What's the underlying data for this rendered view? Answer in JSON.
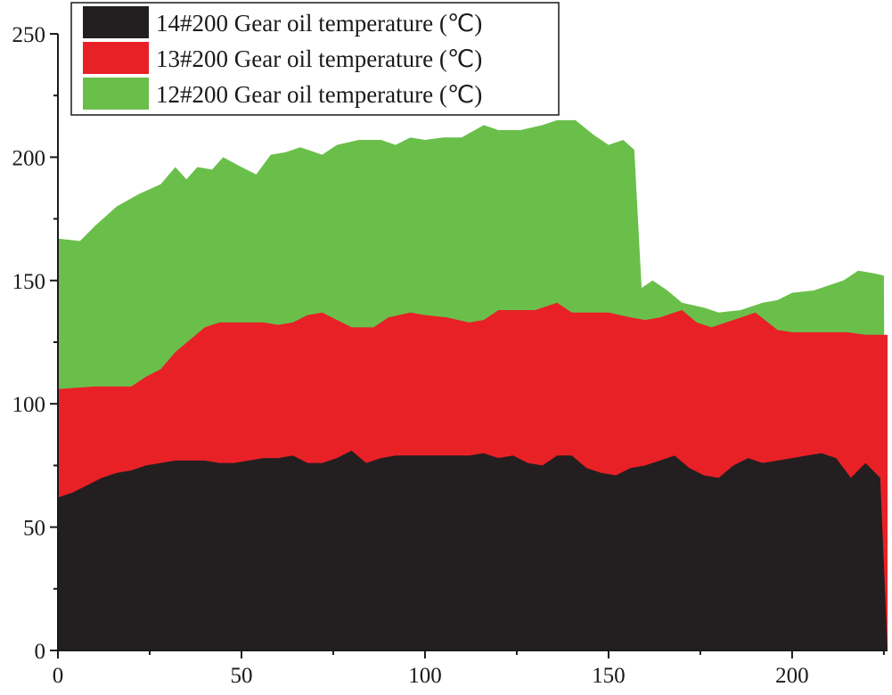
{
  "chart_data": {
    "type": "area",
    "title": "",
    "xlabel": "",
    "ylabel": "",
    "xlim": [
      0,
      226
    ],
    "ylim": [
      0,
      250
    ],
    "x_ticks": [
      0,
      50,
      100,
      150,
      200
    ],
    "y_ticks": [
      0,
      50,
      100,
      150,
      200,
      250
    ],
    "x_tick_labels": [
      "0",
      "50",
      "100",
      "150",
      "200"
    ],
    "y_tick_labels": [
      "0",
      "50",
      "100",
      "150",
      "200",
      "250"
    ],
    "legend_position": "top-left",
    "series": [
      {
        "name": "12#200 Gear oil temperature (℃)",
        "color": "#6abf4b",
        "points": [
          [
            0,
            167
          ],
          [
            6,
            166
          ],
          [
            10,
            172
          ],
          [
            16,
            180
          ],
          [
            22,
            185
          ],
          [
            28,
            189
          ],
          [
            32,
            196
          ],
          [
            35,
            191
          ],
          [
            38,
            196
          ],
          [
            42,
            195
          ],
          [
            45,
            200
          ],
          [
            50,
            196
          ],
          [
            54,
            193
          ],
          [
            58,
            201
          ],
          [
            62,
            202
          ],
          [
            66,
            204
          ],
          [
            72,
            201
          ],
          [
            76,
            205
          ],
          [
            82,
            207
          ],
          [
            88,
            207
          ],
          [
            92,
            205
          ],
          [
            96,
            208
          ],
          [
            100,
            207
          ],
          [
            105,
            208
          ],
          [
            110,
            208
          ],
          [
            116,
            213
          ],
          [
            120,
            211
          ],
          [
            126,
            211
          ],
          [
            132,
            213
          ],
          [
            136,
            215
          ],
          [
            141,
            215
          ],
          [
            146,
            209
          ],
          [
            150,
            205
          ],
          [
            154,
            207
          ],
          [
            157,
            203
          ],
          [
            159,
            147
          ],
          [
            162,
            150
          ],
          [
            166,
            146
          ],
          [
            170,
            141
          ],
          [
            176,
            139
          ],
          [
            180,
            137
          ],
          [
            186,
            138
          ],
          [
            192,
            141
          ],
          [
            196,
            142
          ],
          [
            200,
            145
          ],
          [
            206,
            146
          ],
          [
            210,
            148
          ],
          [
            214,
            150
          ],
          [
            218,
            154
          ],
          [
            222,
            153
          ],
          [
            225,
            152
          ],
          [
            225.5,
            0
          ]
        ]
      },
      {
        "name": "13#200 Gear oil temperature (℃)",
        "color": "#e82127",
        "points": [
          [
            0,
            106
          ],
          [
            10,
            107
          ],
          [
            20,
            107
          ],
          [
            24,
            111
          ],
          [
            28,
            114
          ],
          [
            32,
            121
          ],
          [
            36,
            126
          ],
          [
            40,
            131
          ],
          [
            44,
            133
          ],
          [
            50,
            133
          ],
          [
            56,
            133
          ],
          [
            60,
            132
          ],
          [
            64,
            133
          ],
          [
            68,
            136
          ],
          [
            72,
            137
          ],
          [
            76,
            134
          ],
          [
            80,
            131
          ],
          [
            86,
            131
          ],
          [
            90,
            135
          ],
          [
            96,
            137
          ],
          [
            100,
            136
          ],
          [
            106,
            135
          ],
          [
            112,
            133
          ],
          [
            116,
            134
          ],
          [
            120,
            138
          ],
          [
            126,
            138
          ],
          [
            130,
            138
          ],
          [
            136,
            141
          ],
          [
            140,
            137
          ],
          [
            146,
            137
          ],
          [
            150,
            137
          ],
          [
            156,
            135
          ],
          [
            160,
            134
          ],
          [
            164,
            135
          ],
          [
            170,
            138
          ],
          [
            174,
            133
          ],
          [
            178,
            131
          ],
          [
            184,
            134
          ],
          [
            190,
            137
          ],
          [
            196,
            130
          ],
          [
            200,
            129
          ],
          [
            205,
            129
          ],
          [
            210,
            129
          ],
          [
            215,
            129
          ],
          [
            220,
            128
          ],
          [
            226,
            128
          ],
          [
            226,
            0
          ]
        ]
      },
      {
        "name": "14#200 Gear oil temperature (℃)",
        "color": "#231f20",
        "points": [
          [
            0,
            62
          ],
          [
            4,
            64
          ],
          [
            8,
            67
          ],
          [
            12,
            70
          ],
          [
            16,
            72
          ],
          [
            20,
            73
          ],
          [
            24,
            75
          ],
          [
            28,
            76
          ],
          [
            32,
            77
          ],
          [
            36,
            77
          ],
          [
            40,
            77
          ],
          [
            44,
            76
          ],
          [
            48,
            76
          ],
          [
            52,
            77
          ],
          [
            56,
            78
          ],
          [
            60,
            78
          ],
          [
            64,
            79
          ],
          [
            68,
            76
          ],
          [
            72,
            76
          ],
          [
            76,
            78
          ],
          [
            80,
            81
          ],
          [
            84,
            76
          ],
          [
            88,
            78
          ],
          [
            92,
            79
          ],
          [
            96,
            79
          ],
          [
            100,
            79
          ],
          [
            104,
            79
          ],
          [
            108,
            79
          ],
          [
            112,
            79
          ],
          [
            116,
            80
          ],
          [
            120,
            78
          ],
          [
            124,
            79
          ],
          [
            128,
            76
          ],
          [
            132,
            75
          ],
          [
            136,
            79
          ],
          [
            140,
            79
          ],
          [
            144,
            74
          ],
          [
            148,
            72
          ],
          [
            152,
            71
          ],
          [
            156,
            74
          ],
          [
            160,
            75
          ],
          [
            164,
            77
          ],
          [
            168,
            79
          ],
          [
            172,
            74
          ],
          [
            176,
            71
          ],
          [
            180,
            70
          ],
          [
            184,
            75
          ],
          [
            188,
            78
          ],
          [
            192,
            76
          ],
          [
            196,
            77
          ],
          [
            200,
            78
          ],
          [
            204,
            79
          ],
          [
            208,
            80
          ],
          [
            212,
            78
          ],
          [
            216,
            70
          ],
          [
            220,
            76
          ],
          [
            224,
            70
          ],
          [
            226,
            0
          ]
        ]
      }
    ]
  }
}
